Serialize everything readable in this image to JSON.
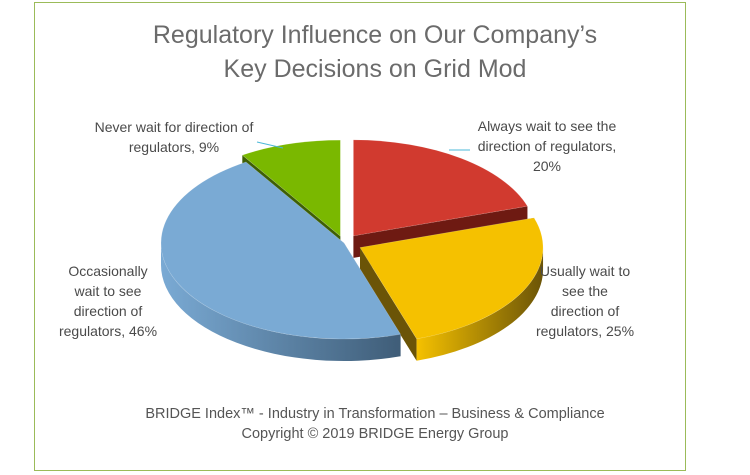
{
  "title_line1": "Regulatory Influence on Our Company’s",
  "title_line2": "Key Decisions on Grid Mod",
  "footer_line1": "BRIDGE Index™ - Industry in Transformation – Business & Compliance",
  "footer_line2": "Copyright © 2019 BRIDGE Energy Group",
  "chart_data": {
    "type": "pie",
    "title": "Regulatory Influence on Our Company’s Key Decisions on Grid Mod",
    "style": "3d-exploded",
    "slices": [
      {
        "name": "Always wait to see the direction of regulators",
        "value": 20,
        "label_lines": [
          "Always wait to see the",
          "direction of regulators,",
          "20%"
        ],
        "color": "#d13a2f",
        "side_color": "#6e1a12"
      },
      {
        "name": "Usually wait to see the direction of regulators",
        "value": 25,
        "label_lines": [
          "Usually wait to",
          "see the",
          "direction of",
          "regulators, 25%"
        ],
        "color": "#f5c100",
        "side_color": "#6b5407"
      },
      {
        "name": "Occasionally wait to see direction of regulators",
        "value": 46,
        "label_lines": [
          "Occasionally",
          "wait to see",
          "direction of",
          "regulators, 46%"
        ],
        "color": "#7aaad4",
        "side_color": "#3f5d78"
      },
      {
        "name": "Never wait for direction of regulators",
        "value": 9,
        "label_lines": [
          "Never wait for direction of",
          "regulators, 9%"
        ],
        "color": "#7ab800",
        "side_color": "#3e5f05"
      }
    ],
    "leader_line_color": "#4bb8d8"
  }
}
